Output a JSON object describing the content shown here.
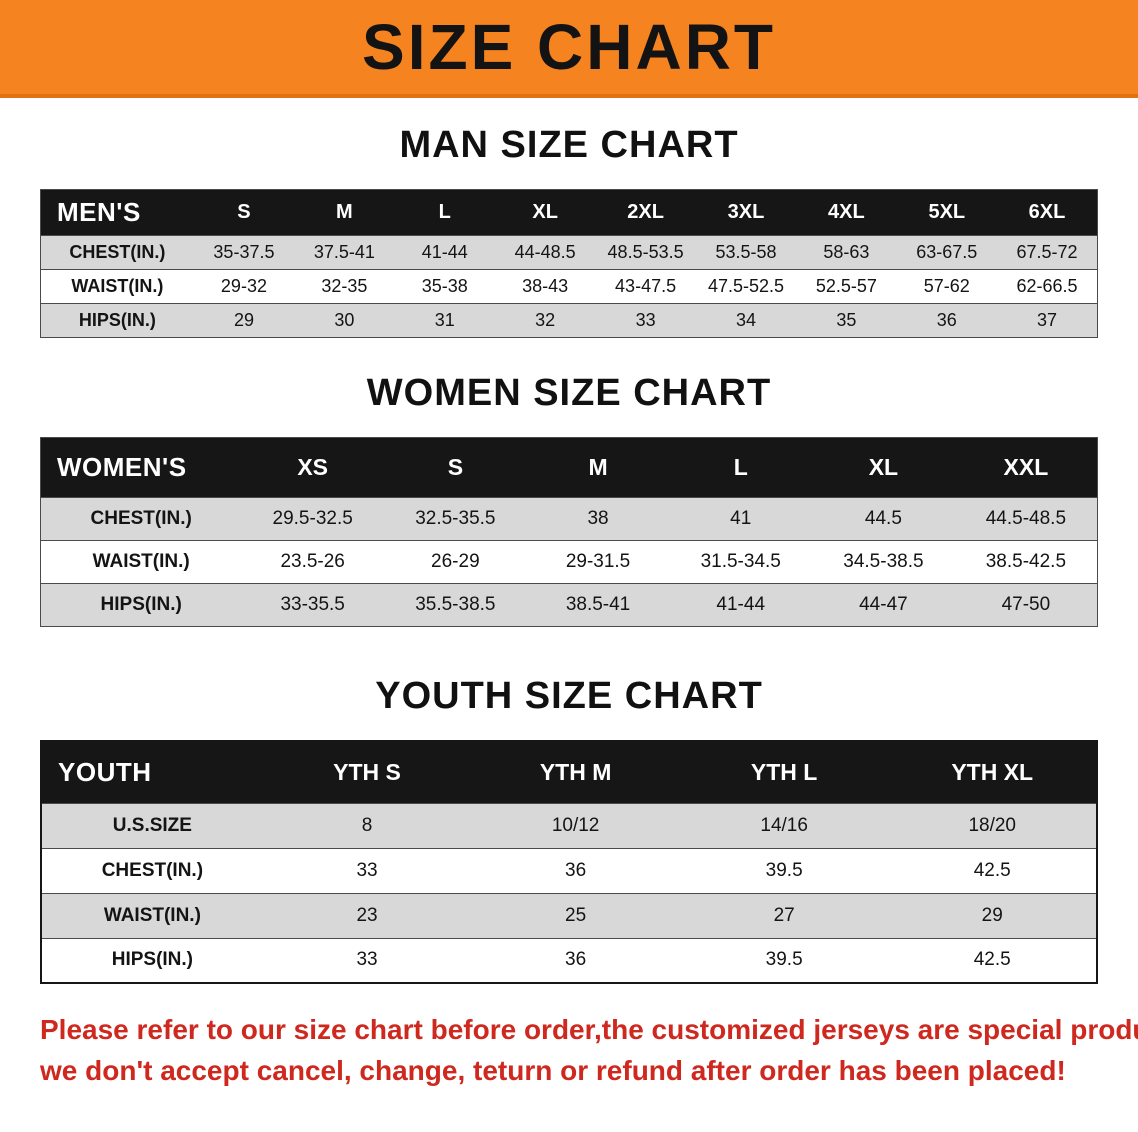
{
  "banner": {
    "title": "SIZE CHART",
    "bg_color": "#f5831f",
    "text_color": "#131313"
  },
  "sections": [
    {
      "heading": "MAN SIZE CHART",
      "header": [
        "MEN'S",
        "S",
        "M",
        "L",
        "XL",
        "2XL",
        "3XL",
        "4XL",
        "5XL",
        "6XL"
      ],
      "rows": [
        [
          "CHEST(IN.)",
          "35-37.5",
          "37.5-41",
          "41-44",
          "44-48.5",
          "48.5-53.5",
          "53.5-58",
          "58-63",
          "63-67.5",
          "67.5-72"
        ],
        [
          "WAIST(IN.)",
          "29-32",
          "32-35",
          "35-38",
          "38-43",
          "43-47.5",
          "47.5-52.5",
          "52.5-57",
          "57-62",
          "62-66.5"
        ],
        [
          "HIPS(IN.)",
          "29",
          "30",
          "31",
          "32",
          "33",
          "34",
          "35",
          "36",
          "37"
        ]
      ]
    },
    {
      "heading": "WOMEN SIZE CHART",
      "header": [
        "WOMEN'S",
        "XS",
        "S",
        "M",
        "L",
        "XL",
        "XXL"
      ],
      "rows": [
        [
          "CHEST(IN.)",
          "29.5-32.5",
          "32.5-35.5",
          "38",
          "41",
          "44.5",
          "44.5-48.5"
        ],
        [
          "WAIST(IN.)",
          "23.5-26",
          "26-29",
          "29-31.5",
          "31.5-34.5",
          "34.5-38.5",
          "38.5-42.5"
        ],
        [
          "HIPS(IN.)",
          "33-35.5",
          "35.5-38.5",
          "38.5-41",
          "41-44",
          "44-47",
          "47-50"
        ]
      ]
    },
    {
      "heading": "YOUTH SIZE CHART",
      "header": [
        "YOUTH",
        "YTH S",
        "YTH M",
        "YTH L",
        "YTH XL"
      ],
      "rows": [
        [
          "U.S.SIZE",
          "8",
          "10/12",
          "14/16",
          "18/20"
        ],
        [
          "CHEST(IN.)",
          "33",
          "36",
          "39.5",
          "42.5"
        ],
        [
          "WAIST(IN.)",
          "23",
          "25",
          "27",
          "29"
        ],
        [
          "HIPS(IN.)",
          "33",
          "36",
          "39.5",
          "42.5"
        ]
      ]
    }
  ],
  "disclaimer": {
    "line1": "Please refer to our size chart before order,the customized jerseys are special products,",
    "line2": "we don't accept cancel, change, teturn or refund after order has been placed!",
    "text_color": "#cf281e"
  }
}
